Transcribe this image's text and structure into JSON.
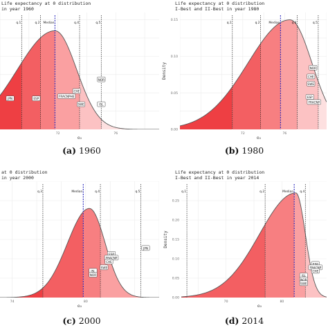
{
  "chart_data": [
    {
      "type": "area",
      "title": "Life expectancy at 0 distribution",
      "subtitle": "in year 1960",
      "xlabel": "e₀",
      "ylabel": "",
      "xlim": [
        68,
        79
      ],
      "ylim": [
        0,
        0.16
      ],
      "x_ticks": [
        72,
        76
      ],
      "y_ticks": [],
      "grid": true,
      "density": {
        "mean": 71.8,
        "sd_left": 2.6,
        "sd_right": 1.5,
        "peak": 0.135
      },
      "quantiles": [
        {
          "name": "q.1",
          "x": 69.5
        },
        {
          "name": "q.2",
          "x": 70.8
        },
        {
          "name": "Median",
          "x": 71.8
        },
        {
          "name": "q.4",
          "x": 73.5
        },
        {
          "name": "q.5",
          "x": 75.0
        }
      ],
      "countries": [
        {
          "code": "JPN",
          "x": 68.7,
          "y": 0.042
        },
        {
          "code": "ESP",
          "x": 70.5,
          "y": 0.042
        },
        {
          "code": "CHE",
          "x": 73.3,
          "y": 0.052
        },
        {
          "code": "FRACNPHE",
          "x": 72.6,
          "y": 0.045
        },
        {
          "code": "NOR",
          "x": 75.0,
          "y": 0.068
        },
        {
          "code": "SWE",
          "x": 73.6,
          "y": 0.034
        },
        {
          "code": "ISL",
          "x": 75.0,
          "y": 0.034
        }
      ],
      "caption_letter": "(a)",
      "caption_year": "1960"
    },
    {
      "type": "area",
      "title": "Life expectancy at 0 distribution",
      "subtitle": "I-Best and II-Best in year 1980",
      "xlabel": "e₀",
      "ylabel": "Density",
      "xlim": [
        66,
        80
      ],
      "ylim": [
        0,
        0.16
      ],
      "x_ticks": [
        72,
        76
      ],
      "y_ticks": [
        0.0,
        0.05,
        0.1,
        0.15
      ],
      "y_tick_labels": [
        "0.00",
        "0.05",
        "0.10",
        "0.15"
      ],
      "grid": true,
      "density": {
        "mean": 76.5,
        "sd_left": 4.0,
        "sd_right": 2.1,
        "peak": 0.15
      },
      "quantiles": [
        {
          "name": "q.1",
          "x": 71.0
        },
        {
          "name": "q.2",
          "x": 73.7
        },
        {
          "name": "Median",
          "x": 75.6
        },
        {
          "name": "q.4",
          "x": 77.2
        },
        {
          "name": "q.5",
          "x": 79.2
        }
      ],
      "countries": [
        {
          "code": "NOR",
          "x": 78.7,
          "y": 0.084
        },
        {
          "code": "CHE",
          "x": 78.5,
          "y": 0.072
        },
        {
          "code": "SWE",
          "x": 78.5,
          "y": 0.062
        },
        {
          "code": "ESP",
          "x": 78.4,
          "y": 0.044
        },
        {
          "code": "FRACNP",
          "x": 78.8,
          "y": 0.037
        }
      ],
      "caption_letter": "(b)",
      "caption_year": "1980"
    },
    {
      "type": "area",
      "title": "at 0 distribution",
      "subtitle": "in year 2000",
      "xlabel": "e₀",
      "ylabel": "",
      "xlim": [
        73,
        86
      ],
      "ylim": [
        0,
        0.3
      ],
      "x_ticks": [
        74,
        80
      ],
      "y_ticks": [],
      "grid": true,
      "density": {
        "mean": 80.3,
        "sd_left": 1.8,
        "sd_right": 1.3,
        "peak": 0.23
      },
      "quantiles": [
        {
          "name": "q.3",
          "x": 76.5
        },
        {
          "name": "Median",
          "x": 79.8
        },
        {
          "name": "q.4",
          "x": 81.2
        },
        {
          "name": "q.5",
          "x": 84.5
        }
      ],
      "countries": [
        {
          "code": "JPN",
          "x": 84.9,
          "y": 0.127
        },
        {
          "code": "ESP",
          "x": 82.1,
          "y": 0.112
        },
        {
          "code": "FRACNP",
          "x": 82.1,
          "y": 0.102
        },
        {
          "code": "CHE",
          "x": 81.9,
          "y": 0.092
        },
        {
          "code": "SWE",
          "x": 81.5,
          "y": 0.077
        },
        {
          "code": "ISL",
          "x": 80.6,
          "y": 0.068
        },
        {
          "code": "NOR",
          "x": 80.6,
          "y": 0.058
        }
      ],
      "caption_letter": "(c)",
      "caption_year": "2000"
    },
    {
      "type": "area",
      "title": "Life expectancy at 0 distribution",
      "subtitle": "I-Best and II-Best in year 2014",
      "xlabel": "e₀",
      "ylabel": "Density",
      "xlim": [
        62,
        88
      ],
      "ylim": [
        0,
        0.3
      ],
      "x_ticks": [
        70,
        80
      ],
      "y_ticks": [
        0.0,
        0.05,
        0.1,
        0.15,
        0.2,
        0.25
      ],
      "y_tick_labels": [
        "0.00",
        "0.05",
        "0.10",
        "0.15",
        "0.20",
        "0.25"
      ],
      "grid": true,
      "density": {
        "mean": 82.5,
        "sd_left": 6.5,
        "sd_right": 1.7,
        "peak": 0.27
      },
      "quantiles": [
        {
          "name": "q.1",
          "x": 63.0
        },
        {
          "name": "q.2",
          "x": 77.0
        },
        {
          "name": "Median",
          "x": 82.2
        },
        {
          "name": "q.4",
          "x": 84.2
        }
      ],
      "countries": [
        {
          "code": "ESP",
          "x": 86.0,
          "y": 0.086
        },
        {
          "code": "FRACNP",
          "x": 86.0,
          "y": 0.077
        },
        {
          "code": "CHE",
          "x": 86.0,
          "y": 0.068
        },
        {
          "code": "ISL",
          "x": 83.9,
          "y": 0.056
        },
        {
          "code": "NOR",
          "x": 83.9,
          "y": 0.046
        },
        {
          "code": "SWE",
          "x": 83.9,
          "y": 0.036
        }
      ],
      "caption_letter": "(d)",
      "caption_year": "2014"
    }
  ],
  "colors": {
    "curve": "#555555",
    "median_line": "#2b2bbd",
    "quantile_line": "#333333",
    "grid": "#ebebeb",
    "box_fill": "#ffffff",
    "box_stroke": "#444444",
    "shades": [
      "#ee3f43",
      "#f35f62",
      "#f77f81",
      "#faa0a1",
      "#fcc2c3",
      "#fde0e0",
      "#fef0f0"
    ]
  }
}
